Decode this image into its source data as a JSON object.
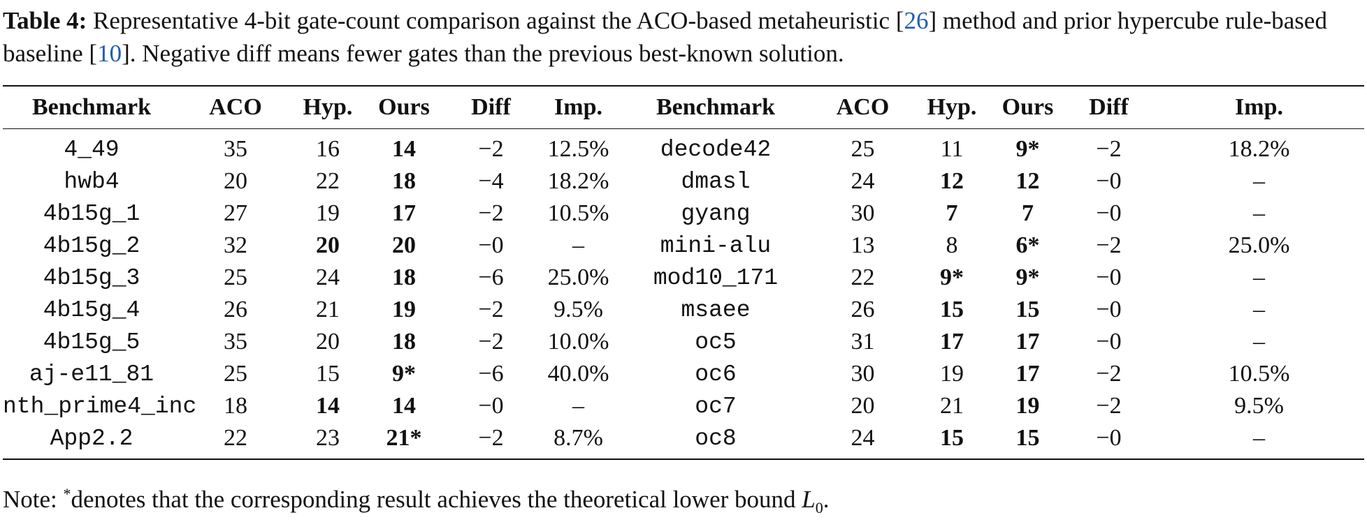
{
  "caption": {
    "label": "Table 4:",
    "text_before_ref1": " Representative 4-bit gate-count comparison against the ACO-based metaheuristic [",
    "ref1": "26",
    "text_between_refs": "] method and prior hypercube rule-based baseline [",
    "ref2": "10",
    "text_after_ref2": "]. Negative diff means fewer gates than the previous best-known solution."
  },
  "table": {
    "headers": [
      "Benchmark",
      "ACO",
      "Hyp.",
      "Ours",
      "Diff",
      "Imp.",
      "Benchmark",
      "ACO",
      "Hyp.",
      "Ours",
      "Diff",
      "Imp."
    ],
    "rows": [
      [
        "4_49",
        "35",
        "16",
        "14",
        "−2",
        "12.5%",
        "decode42",
        "25",
        "11",
        "9*",
        "−2",
        "18.2%"
      ],
      [
        "hwb4",
        "20",
        "22",
        "18",
        "−4",
        "18.2%",
        "dmasl",
        "24",
        "12",
        "12",
        "−0",
        "–"
      ],
      [
        "4b15g_1",
        "27",
        "19",
        "17",
        "−2",
        "10.5%",
        "gyang",
        "30",
        "7",
        "7",
        "−0",
        "–"
      ],
      [
        "4b15g_2",
        "32",
        "20",
        "20",
        "−0",
        "–",
        "mini-alu",
        "13",
        "8",
        "6*",
        "−2",
        "25.0%"
      ],
      [
        "4b15g_3",
        "25",
        "24",
        "18",
        "−6",
        "25.0%",
        "mod10_171",
        "22",
        "9*",
        "9*",
        "−0",
        "–"
      ],
      [
        "4b15g_4",
        "26",
        "21",
        "19",
        "−2",
        "9.5%",
        "msaee",
        "26",
        "15",
        "15",
        "−0",
        "–"
      ],
      [
        "4b15g_5",
        "35",
        "20",
        "18",
        "−2",
        "10.0%",
        "oc5",
        "31",
        "17",
        "17",
        "−0",
        "–"
      ],
      [
        "aj-e11_81",
        "25",
        "15",
        "9*",
        "−6",
        "40.0%",
        "oc6",
        "30",
        "19",
        "17",
        "−2",
        "10.5%"
      ],
      [
        "nth_prime4_inc",
        "18",
        "14",
        "14",
        "−0",
        "–",
        "oc7",
        "20",
        "21",
        "19",
        "−2",
        "9.5%"
      ],
      [
        "App2.2",
        "22",
        "23",
        "21*",
        "−2",
        "8.7%",
        "oc8",
        "24",
        "15",
        "15",
        "−0",
        "–"
      ]
    ],
    "bold_cells": [
      [
        0,
        3
      ],
      [
        0,
        9
      ],
      [
        1,
        3
      ],
      [
        1,
        8
      ],
      [
        1,
        9
      ],
      [
        2,
        3
      ],
      [
        2,
        8
      ],
      [
        2,
        9
      ],
      [
        3,
        2
      ],
      [
        3,
        3
      ],
      [
        3,
        9
      ],
      [
        4,
        3
      ],
      [
        4,
        8
      ],
      [
        4,
        9
      ],
      [
        5,
        3
      ],
      [
        5,
        8
      ],
      [
        5,
        9
      ],
      [
        6,
        3
      ],
      [
        6,
        8
      ],
      [
        6,
        9
      ],
      [
        7,
        3
      ],
      [
        7,
        9
      ],
      [
        8,
        2
      ],
      [
        8,
        3
      ],
      [
        8,
        9
      ],
      [
        9,
        3
      ],
      [
        9,
        8
      ],
      [
        9,
        9
      ]
    ]
  },
  "note": {
    "prefix": "Note: ",
    "star": "*",
    "text": "denotes that the corresponding result achieves the theoretical lower bound ",
    "math_var": "L",
    "math_sub": "0",
    "suffix": "."
  }
}
